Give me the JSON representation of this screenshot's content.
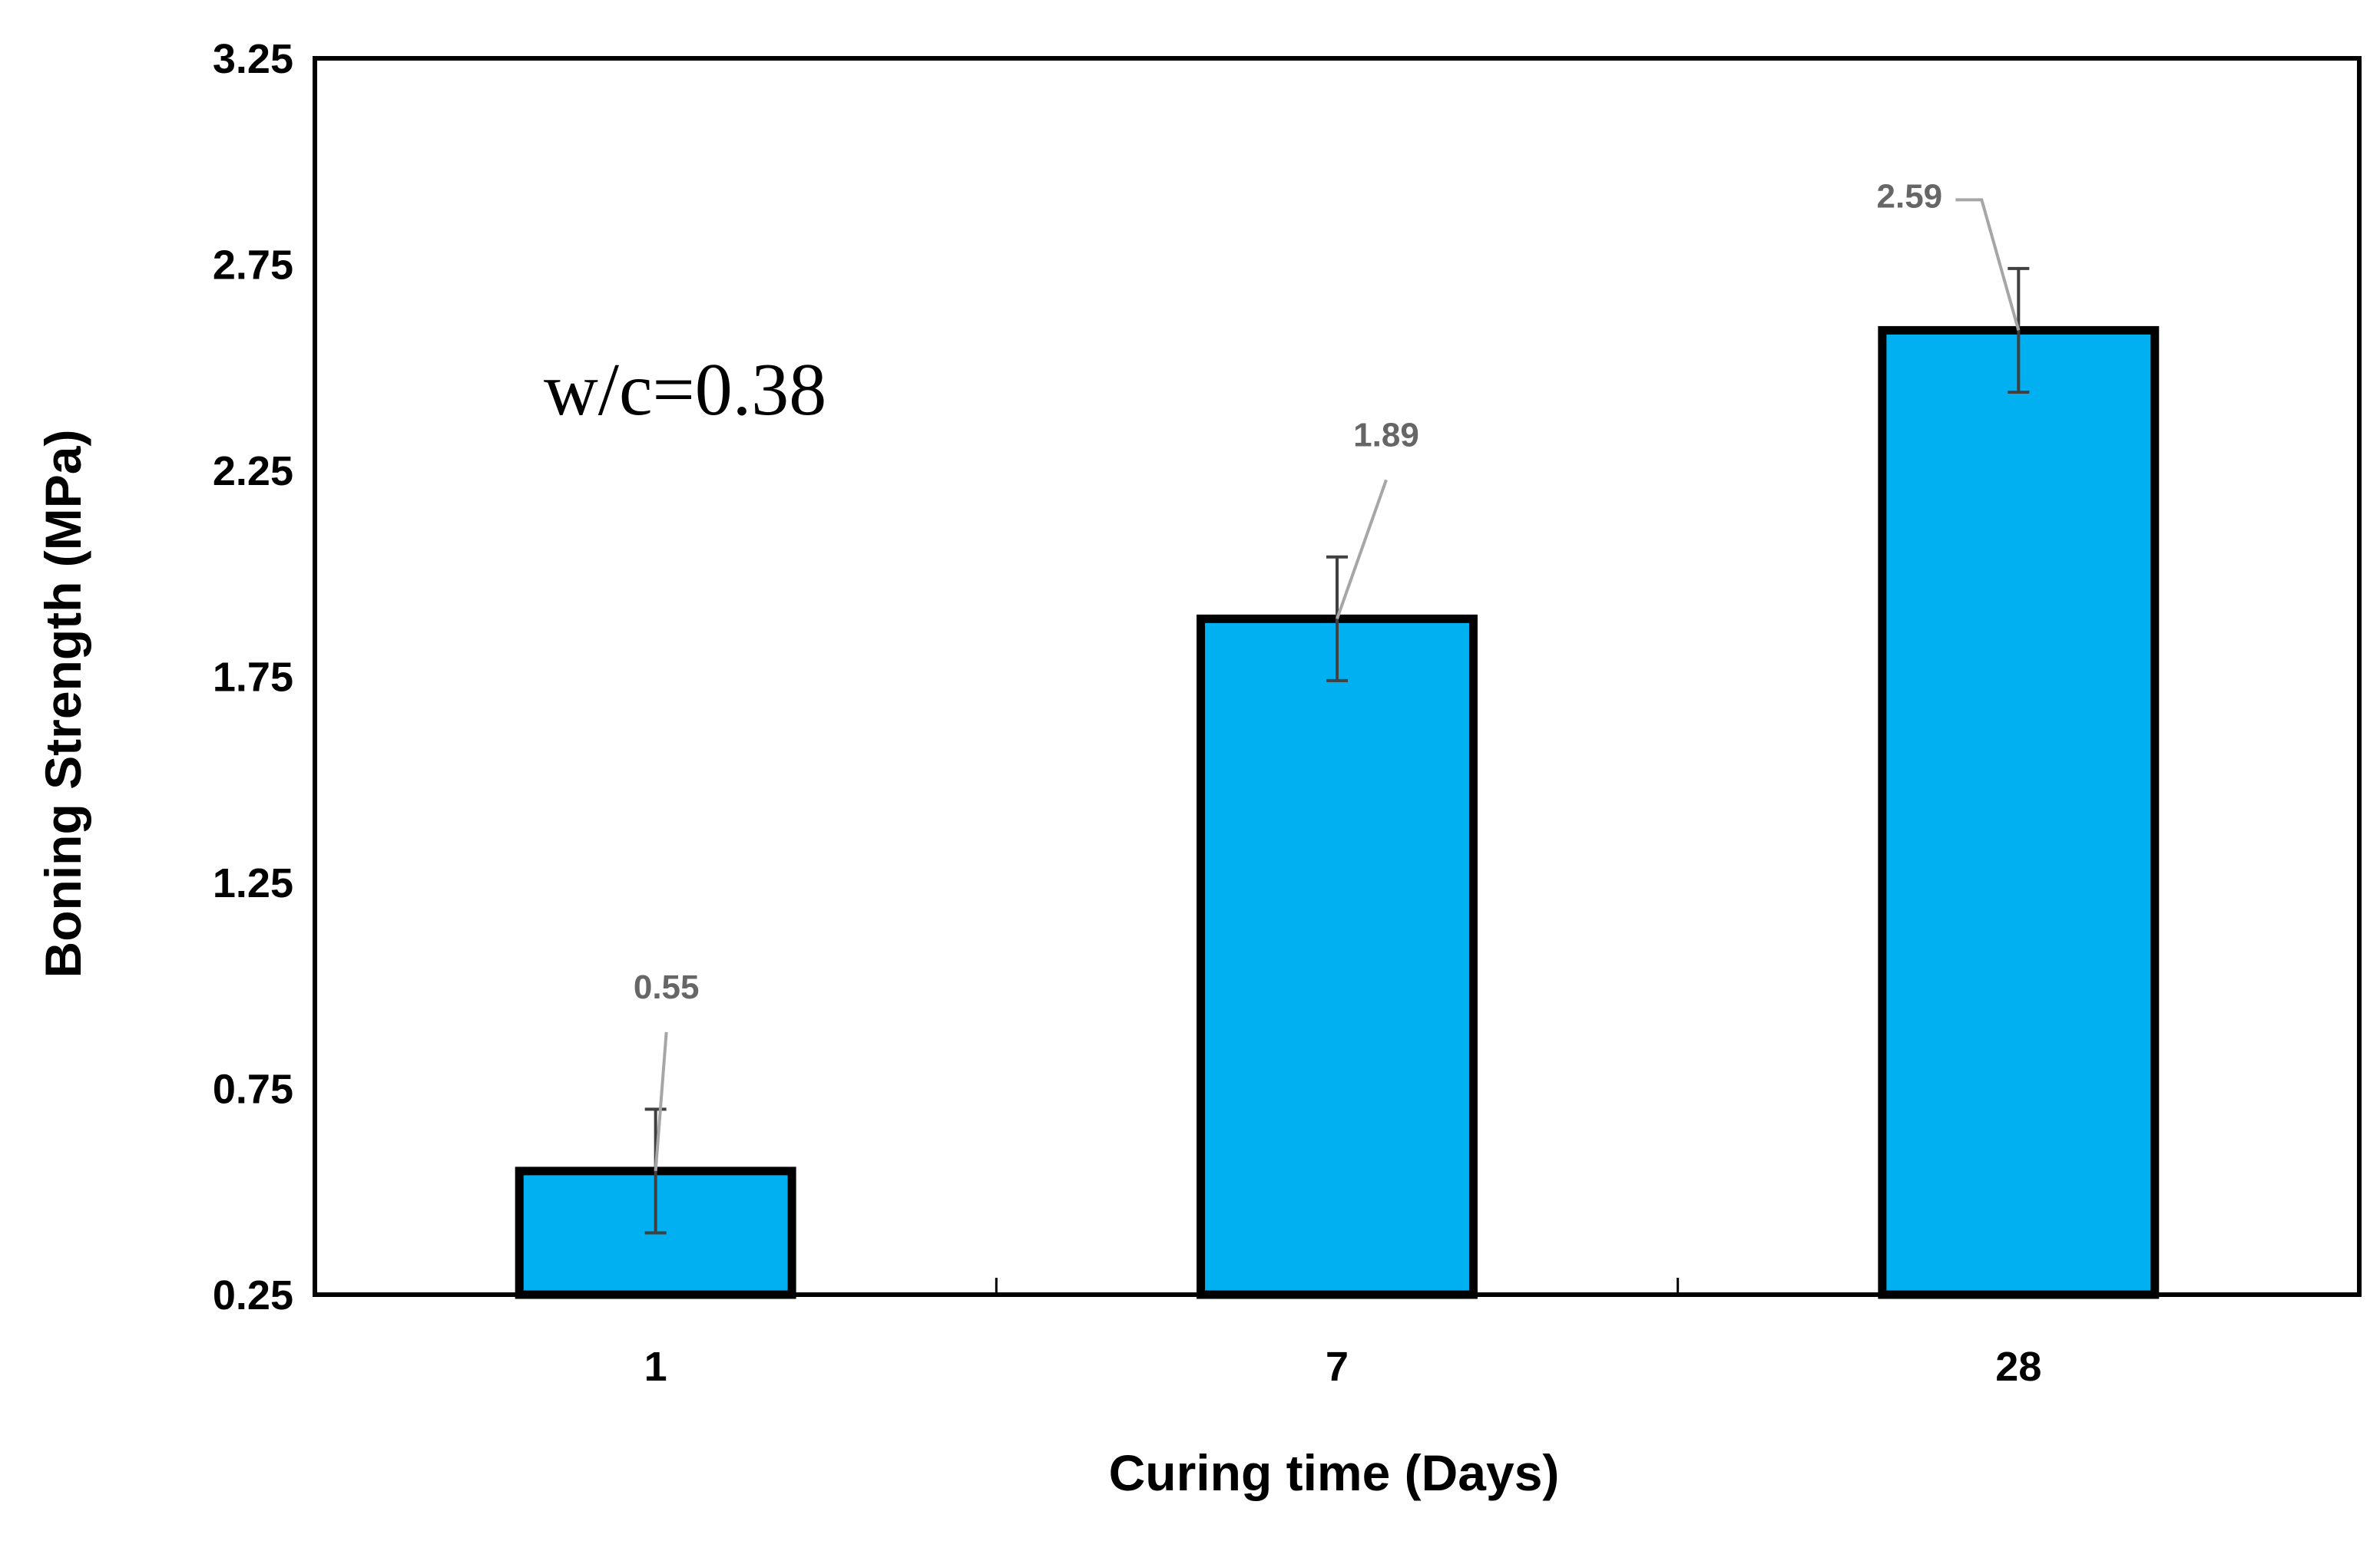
{
  "chart_data": {
    "type": "bar",
    "title": "",
    "xlabel": "Curing time (Days)",
    "ylabel": "Boning Strength (MPa)",
    "categories": [
      "1",
      "7",
      "28"
    ],
    "values": [
      0.55,
      1.89,
      2.59
    ],
    "error_bars": [
      0.15,
      0.15,
      0.15
    ],
    "data_labels": [
      "0.55",
      "1.89",
      "2.59"
    ],
    "ylim": [
      0.25,
      3.25
    ],
    "yticks": [
      "0.25",
      "0.75",
      "1.25",
      "1.75",
      "2.25",
      "2.75",
      "3.25"
    ],
    "annotation": "w/c=0.38",
    "legend": "none",
    "grid": false,
    "colors": {
      "bar_fill": "#00B0F0",
      "bar_stroke": "#000000",
      "error_bar": "#404040",
      "leader_line": "#A6A6A6",
      "data_label": "#666666"
    }
  }
}
